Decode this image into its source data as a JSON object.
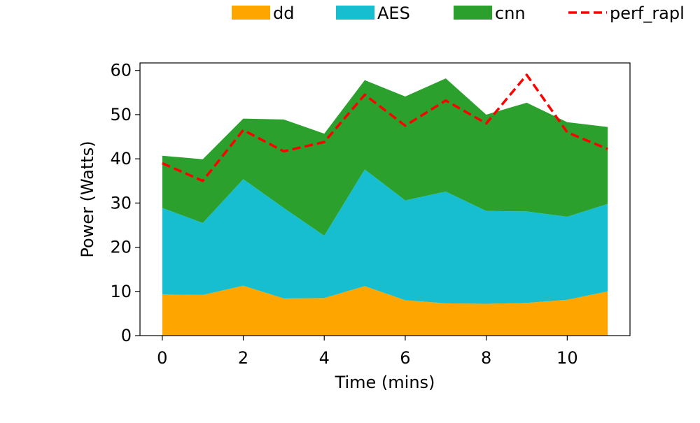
{
  "chart_data": {
    "type": "area",
    "stacked": true,
    "xlabel": "Time (mins)",
    "ylabel": "Power (Watts)",
    "xlim": [
      -0.55,
      11.55
    ],
    "ylim": [
      0,
      61.7
    ],
    "x": [
      0,
      1,
      2,
      3,
      4,
      5,
      6,
      7,
      8,
      9,
      10,
      11
    ],
    "xticks": [
      0,
      2,
      4,
      6,
      8,
      10
    ],
    "yticks": [
      0,
      10,
      20,
      30,
      40,
      50,
      60
    ],
    "grid": false,
    "legend_placement": "top",
    "series": [
      {
        "name": "dd",
        "kind": "area",
        "color": "#ffa500",
        "values": [
          9.3,
          9.2,
          11.3,
          8.4,
          8.5,
          11.2,
          8.0,
          7.3,
          7.2,
          7.4,
          8.1,
          10.0
        ]
      },
      {
        "name": "AES",
        "kind": "area",
        "color": "#17becf",
        "values": [
          19.6,
          16.3,
          24.1,
          20.5,
          14.1,
          26.4,
          22.6,
          25.3,
          21.0,
          20.7,
          18.8,
          19.8
        ]
      },
      {
        "name": "cnn",
        "kind": "area",
        "color": "#2ca02c",
        "values": [
          11.8,
          14.4,
          13.7,
          20.0,
          23.1,
          20.2,
          23.5,
          25.6,
          21.8,
          24.6,
          21.4,
          17.4
        ]
      },
      {
        "name": "perf_rapl",
        "kind": "line",
        "dash": true,
        "color": "#ff0000",
        "values": [
          39.0,
          35.0,
          46.5,
          41.7,
          43.8,
          54.5,
          47.5,
          53.2,
          48.0,
          59.0,
          46.0,
          42.2
        ]
      }
    ]
  }
}
